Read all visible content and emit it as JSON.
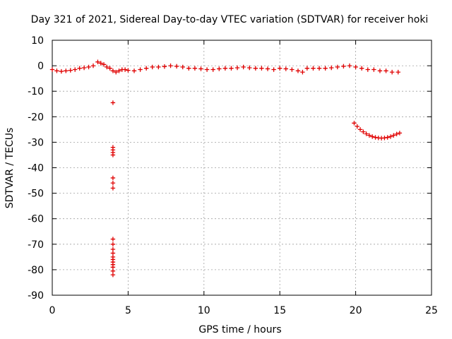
{
  "chart_data": {
    "type": "scatter",
    "title": "Day 321 of 2021, Sidereal Day-to-day VTEC variation (SDTVAR) for receiver hoki",
    "xlabel": "GPS time / hours",
    "ylabel": "SDTVAR / TECUs",
    "xlim": [
      0,
      25
    ],
    "ylim": [
      -90,
      10
    ],
    "xticks": [
      0,
      5,
      10,
      15,
      20,
      25
    ],
    "yticks": [
      10,
      0,
      -10,
      -20,
      -30,
      -40,
      -50,
      -60,
      -70,
      -80,
      -90
    ],
    "grid": true,
    "marker": "+",
    "color": "#e00000",
    "series": [
      {
        "name": "SDTVAR",
        "x": [
          0.0,
          0.3,
          0.6,
          0.9,
          1.2,
          1.5,
          1.8,
          2.1,
          2.4,
          2.7,
          3.0,
          3.2,
          3.4,
          3.6,
          3.8,
          4.0,
          4.2,
          4.4,
          4.6,
          4.8,
          5.0,
          5.4,
          5.8,
          6.2,
          6.6,
          7.0,
          7.4,
          7.8,
          8.2,
          8.6,
          9.0,
          9.4,
          9.8,
          10.2,
          10.6,
          11.0,
          11.4,
          11.8,
          12.2,
          12.6,
          13.0,
          13.4,
          13.8,
          14.2,
          14.6,
          15.0,
          15.4,
          15.8,
          16.2,
          16.5,
          16.8,
          17.2,
          17.6,
          18.0,
          18.4,
          18.8,
          19.2,
          19.6,
          20.0,
          20.4,
          20.8,
          21.2,
          21.6,
          22.0,
          22.4,
          22.8,
          4.0,
          4.0,
          4.0,
          4.0,
          4.0,
          4.0,
          4.0,
          4.0,
          4.0,
          4.0,
          4.0,
          4.0,
          4.0,
          4.0,
          4.0,
          4.0,
          4.0,
          4.0,
          4.0,
          19.9,
          20.1,
          20.3,
          20.5,
          20.7,
          20.9,
          21.1,
          21.3,
          21.5,
          21.7,
          21.9,
          22.1,
          22.3,
          22.5,
          22.7,
          22.9
        ],
        "y": [
          -1.5,
          -2.0,
          -2.2,
          -2.0,
          -1.8,
          -1.5,
          -1.0,
          -0.8,
          -0.5,
          0.0,
          1.5,
          1.0,
          0.5,
          -0.5,
          -1.0,
          -2.0,
          -2.5,
          -2.0,
          -1.5,
          -1.5,
          -1.8,
          -2.0,
          -1.5,
          -1.0,
          -0.5,
          -0.5,
          -0.3,
          0.0,
          -0.2,
          -0.5,
          -1.0,
          -1.0,
          -1.2,
          -1.5,
          -1.5,
          -1.2,
          -1.0,
          -1.0,
          -0.8,
          -0.5,
          -0.8,
          -1.0,
          -1.0,
          -1.2,
          -1.5,
          -1.0,
          -1.2,
          -1.5,
          -2.0,
          -2.5,
          -1.0,
          -1.0,
          -1.0,
          -1.0,
          -0.8,
          -0.5,
          -0.2,
          0.0,
          -0.5,
          -1.0,
          -1.5,
          -1.5,
          -2.0,
          -2.0,
          -2.5,
          -2.5,
          -14.5,
          -32.0,
          -33.0,
          -34.0,
          -35.0,
          -44.0,
          -46.0,
          -48.0,
          -68.0,
          -70.0,
          -72.0,
          -73.5,
          -75.0,
          -76.0,
          -77.0,
          -78.0,
          -79.0,
          -80.5,
          -82.0,
          -22.5,
          -23.8,
          -25.0,
          -25.9,
          -26.7,
          -27.3,
          -27.8,
          -28.1,
          -28.3,
          -28.4,
          -28.3,
          -28.1,
          -27.8,
          -27.3,
          -26.8,
          -26.4
        ]
      }
    ]
  }
}
